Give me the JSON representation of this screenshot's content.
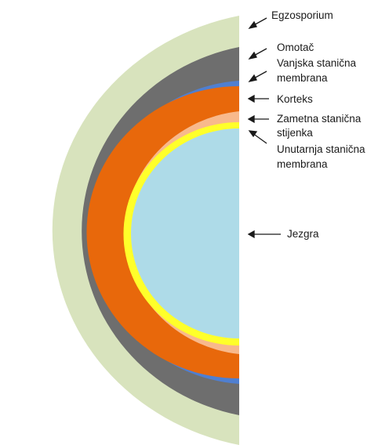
{
  "diagram": {
    "labels": {
      "egzosporium": "Egzosporium",
      "omotac": "Omotač",
      "vanjska_1": "Vanjska stanična",
      "vanjska_2": "membrana",
      "korteks": "Korteks",
      "zametna_1": "Zametna stanična",
      "zametna_2": "stijenka",
      "unutarnja_1": "Unutarnja stanična",
      "unutarnja_2": "membrana",
      "jezgra": "Jezgra"
    },
    "layer_colors": {
      "egzosporium": "#d8e3bd",
      "omotac": "#6e6e6e",
      "vanjska_membrana": "#4f7fd1",
      "korteks": "#e8680b",
      "zametna_stijenka": "#f8b98c",
      "unutarnja_membrana": "#ffff2a",
      "jezgra": "#aedbe8"
    }
  }
}
